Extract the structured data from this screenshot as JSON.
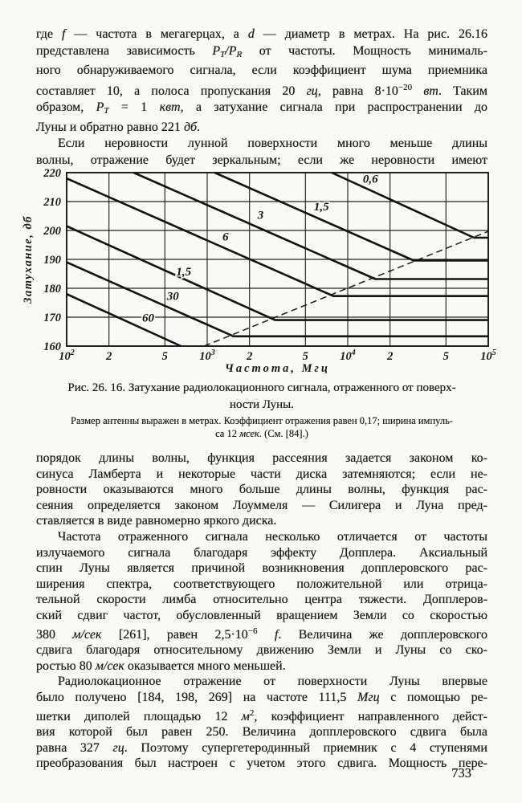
{
  "page": {
    "number": "733"
  },
  "colors": {
    "paper": "#faf9f5",
    "ink": "#1e1c1a"
  },
  "paragraphs_top": [
    {
      "indent": false,
      "open_end": false,
      "lines": [
        [
          "где ",
          "*f",
          " — частота в мегагерцах, а ",
          "*d",
          " — диаметр в метрах. На рис. 26.16"
        ],
        [
          "представлена зависимость ",
          "*P",
          "_T",
          "*/P",
          "_R",
          " от частоты. Мощность минималь-"
        ],
        [
          "ного обнаруживаемого сигнала, если коэффициент шума приемника"
        ],
        [
          "составляет 10, а полоса пропускания 20 ",
          "*гц",
          ", равна 8·10",
          "^−20",
          " ",
          "*вт",
          ". Таким"
        ],
        [
          "образом, ",
          "*P",
          "_T",
          " = 1 ",
          "*квт",
          ", а затухание сигнала при распространении до"
        ],
        [
          "Луны и обратно равно 221 ",
          "*дб",
          "."
        ]
      ]
    },
    {
      "indent": true,
      "open_end": true,
      "lines": [
        [
          "Если неровности лунной поверхности много меньше длины"
        ],
        [
          "волны, отражение будет зеркальным; если же неровности имеют"
        ]
      ]
    }
  ],
  "figure": {
    "caption_lines": [
      [
        "Рис. 26. 16. Затухание радиолокационного сигнала, отраженного от поверх-"
      ],
      [
        "ности Луны."
      ]
    ],
    "subcaption_lines": [
      [
        "Размер антенны выражен в метрах. Коэффициент отражения равен 0,17; ширина импуль-"
      ],
      [
        "са 12 ",
        "*мсек",
        ". (См. [84].)"
      ]
    ]
  },
  "chart_data": {
    "type": "line",
    "title": "",
    "xlabel": "Частота, Мгц",
    "ylabel": "Затухание, дб",
    "xscale": "log",
    "xlim": [
      100,
      100000
    ],
    "ylim": [
      160,
      220
    ],
    "grid": true,
    "legend": "labels-on-lines (antenna size in meters)",
    "yticks": [
      160,
      170,
      180,
      190,
      200,
      210,
      220
    ],
    "xticks": [
      {
        "v": 100,
        "base": "10",
        "exp": "2"
      },
      {
        "v": 200,
        "label": "2"
      },
      {
        "v": 500,
        "label": "5"
      },
      {
        "v": 1000,
        "base": "10",
        "exp": "3"
      },
      {
        "v": 2000,
        "label": "2"
      },
      {
        "v": 5000,
        "label": "5"
      },
      {
        "v": 10000,
        "base": "10",
        "exp": "4"
      },
      {
        "v": 20000,
        "label": "2"
      },
      {
        "v": 50000,
        "label": "5"
      },
      {
        "v": 100000,
        "base": "10",
        "exp": "5"
      }
    ],
    "series": [
      {
        "name": "0,6",
        "points": [
          [
            7700,
            220
          ],
          [
            79000,
            197.5
          ],
          [
            100000,
            197.5
          ]
        ],
        "label_at": [
          14500,
          216.5
        ]
      },
      {
        "name": "1,5",
        "points": [
          [
            1130,
            220
          ],
          [
            29500,
            189.6
          ],
          [
            100000,
            189.6
          ]
        ],
        "label_at": [
          6500,
          207
        ]
      },
      {
        "name": "3",
        "points": [
          [
            300,
            220
          ],
          [
            15700,
            183.2
          ],
          [
            100000,
            183.2
          ]
        ],
        "label_at": [
          2400,
          204
        ]
      },
      {
        "name": "6",
        "points": [
          [
            100,
            218
          ],
          [
            7900,
            177.3
          ],
          [
            100000,
            177.3
          ]
        ],
        "label_at": [
          1350,
          196.5
        ]
      },
      {
        "name": "1,5",
        "points": [
          [
            100,
            201.5
          ],
          [
            3040,
            169
          ],
          [
            100000,
            169
          ]
        ],
        "label_at": [
          680,
          184.5
        ]
      },
      {
        "name": "30",
        "points": [
          [
            100,
            189
          ],
          [
            1540,
            163.4
          ],
          [
            100000,
            163.4
          ]
        ],
        "label_at": [
          570,
          176
        ]
      },
      {
        "name": "60",
        "points": [
          [
            100,
            178
          ],
          [
            650,
            160
          ]
        ],
        "label_at": [
          380,
          168.5
        ]
      }
    ],
    "dashed_line": {
      "points": [
        [
          950,
          160
        ],
        [
          100000,
          199.7
        ]
      ]
    }
  },
  "paragraphs_bottom": [
    {
      "indent": false,
      "open_end": false,
      "lines": [
        [
          "порядок длины волны, функция рассеяния задается законом ко-"
        ],
        [
          "синуса Ламберта и некоторые части диска затемняются; если не-"
        ],
        [
          "ровности оказываются много больше длины волны, функция рас-"
        ],
        [
          "сеяния определяется законом Лоуммеля — Силигера и Луна пред-"
        ],
        [
          "ставляется в виде равномерно яркого диска."
        ]
      ]
    },
    {
      "indent": true,
      "open_end": false,
      "lines": [
        [
          "Частота отраженного сигнала несколько отличается от частоты"
        ],
        [
          "излучаемого сигнала благодаря эффекту Допплера. Аксиальный"
        ],
        [
          "спин Луны является причиной возникновения допплеровского рас-"
        ],
        [
          "ширения спектра, соответствующего положительной или отрица-"
        ],
        [
          "тельной скорости лимба относительно центра тяжести. Допплеров-"
        ],
        [
          "ский сдвиг частот, обусловленный вращением Земли со скоростью"
        ],
        [
          "380 ",
          "*м/сек",
          " [261], равен 2,5·10",
          "^−6",
          " ",
          "*f",
          ". Величина же допплеровского"
        ],
        [
          "сдвига благодаря относительному движению Земли и Луны со ско-"
        ],
        [
          "ростью 80 ",
          "*м/сек",
          " оказывается много меньшей."
        ]
      ]
    },
    {
      "indent": true,
      "open_end": true,
      "lines": [
        [
          "Радиолокационное отражение от поверхности Луны впервые"
        ],
        [
          "было получено [184, 198, 269] на частоте 111,5 ",
          "*Мгц",
          " с помощью ре-"
        ],
        [
          "шетки диполей площадью 12 ",
          "*м",
          "^2",
          ", коэффициент направленного дейст-"
        ],
        [
          "вия которой был равен 250. Величина допплеровского сдвига была"
        ],
        [
          "равна 327 ",
          "*гц",
          ". Поэтому супергетеродинный приемник с 4 ступенями"
        ],
        [
          "преобразования был настроен с учетом этого сдвига. Мощность пере-"
        ]
      ]
    }
  ]
}
